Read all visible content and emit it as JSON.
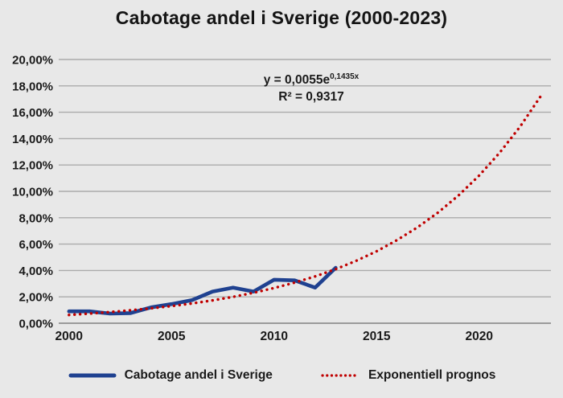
{
  "title": "Cabotage andel i Sverige (2000-2023)",
  "annotation": {
    "equation_base": "y = 0,0055e",
    "equation_exponent": "0,1435x",
    "r_squared": "R² = 0,9317"
  },
  "legend": [
    {
      "label": "Cabotage andel i Sverige",
      "marker": "solid-line",
      "color": "#1f4190"
    },
    {
      "label": "Exponentiell prognos",
      "marker": "dotted-line",
      "color": "#c00000"
    }
  ],
  "colors": {
    "background": "#e8e8e8",
    "gridline": "#ababab",
    "axis_line": "#9b9b9b",
    "text": "#1a1a1a",
    "actual_series": "#1f4190",
    "forecast_series": "#c00000"
  },
  "chart_data": {
    "type": "line",
    "title": "Cabotage andel i Sverige (2000-2023)",
    "xlabel": "",
    "ylabel": "",
    "xlim": [
      2000,
      2023
    ],
    "ylim": [
      0,
      20
    ],
    "grid": true,
    "legend_position": "bottom",
    "x_ticks": [
      2000,
      2005,
      2010,
      2015,
      2020
    ],
    "y_tick_labels": [
      "20,00%",
      "18,00%",
      "16,00%",
      "14,00%",
      "12,00%",
      "10,00%",
      "8,00%",
      "6,00%",
      "4,00%",
      "2,00%",
      "0,00%"
    ],
    "y_unit": "percent",
    "trendline_equation": "y = 0,0055e^(0,1435x)",
    "r_squared": 0.9317,
    "series": [
      {
        "name": "Cabotage andel i Sverige",
        "style": "solid",
        "color": "#1f4190",
        "x": [
          2000,
          2001,
          2002,
          2003,
          2004,
          2005,
          2006,
          2007,
          2008,
          2009,
          2010,
          2011,
          2012,
          2013
        ],
        "values": [
          0.9,
          0.9,
          0.73,
          0.77,
          1.2,
          1.45,
          1.75,
          2.4,
          2.7,
          2.4,
          3.3,
          3.25,
          2.7,
          4.2
        ]
      },
      {
        "name": "Exponentiell prognos",
        "style": "dotted",
        "color": "#c00000",
        "x": [
          2000,
          2001,
          2002,
          2003,
          2004,
          2005,
          2006,
          2007,
          2008,
          2009,
          2010,
          2011,
          2012,
          2013,
          2014,
          2015,
          2016,
          2017,
          2018,
          2019,
          2020,
          2021,
          2022,
          2023
        ],
        "values": [
          0.63,
          0.73,
          0.85,
          0.98,
          1.13,
          1.3,
          1.5,
          1.73,
          2.0,
          2.31,
          2.67,
          3.08,
          3.55,
          4.1,
          4.73,
          5.46,
          6.31,
          7.28,
          8.4,
          9.7,
          11.2,
          12.93,
          14.92,
          17.22
        ]
      }
    ]
  }
}
